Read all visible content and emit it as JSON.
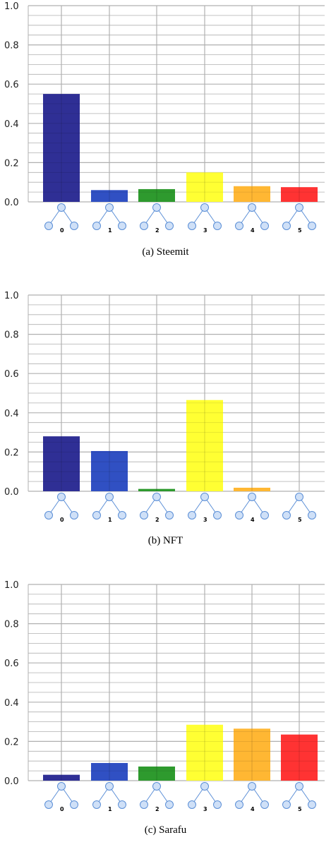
{
  "colors": {
    "motif_0": "#2f2f95",
    "motif_1": "#3050c3",
    "motif_2": "#2e9a2e",
    "motif_3": "#ffff33",
    "motif_4": "#ffb733",
    "motif_5": "#ff3333",
    "grid": "#b0b0b0",
    "node_fill": "#cfe0f7",
    "node_stroke": "#5a8ed6"
  },
  "chart_data": [
    {
      "type": "bar",
      "caption": "(a) Steemit",
      "categories": [
        "0",
        "1",
        "2",
        "3",
        "4",
        "5"
      ],
      "values": [
        0.55,
        0.06,
        0.065,
        0.15,
        0.08,
        0.075
      ],
      "ylim": [
        0,
        1.0
      ],
      "yticks": [
        "0.0",
        "0.2",
        "0.4",
        "0.6",
        "0.8",
        "1.0"
      ],
      "grid": true,
      "title": "",
      "xlabel": "",
      "ylabel": ""
    },
    {
      "type": "bar",
      "caption": "(b) NFT",
      "categories": [
        "0",
        "1",
        "2",
        "3",
        "4",
        "5"
      ],
      "values": [
        0.28,
        0.205,
        0.012,
        0.465,
        0.018,
        0.0
      ],
      "ylim": [
        0,
        1.0
      ],
      "yticks": [
        "0.0",
        "0.2",
        "0.4",
        "0.6",
        "0.8",
        "1.0"
      ],
      "grid": true,
      "title": "",
      "xlabel": "",
      "ylabel": ""
    },
    {
      "type": "bar",
      "caption": "(c) Sarafu",
      "categories": [
        "0",
        "1",
        "2",
        "3",
        "4",
        "5"
      ],
      "values": [
        0.03,
        0.09,
        0.072,
        0.285,
        0.265,
        0.235
      ],
      "ylim": [
        0,
        1.0
      ],
      "yticks": [
        "0.0",
        "0.2",
        "0.4",
        "0.6",
        "0.8",
        "1.0"
      ],
      "grid": true,
      "title": "",
      "xlabel": "",
      "ylabel": ""
    }
  ]
}
